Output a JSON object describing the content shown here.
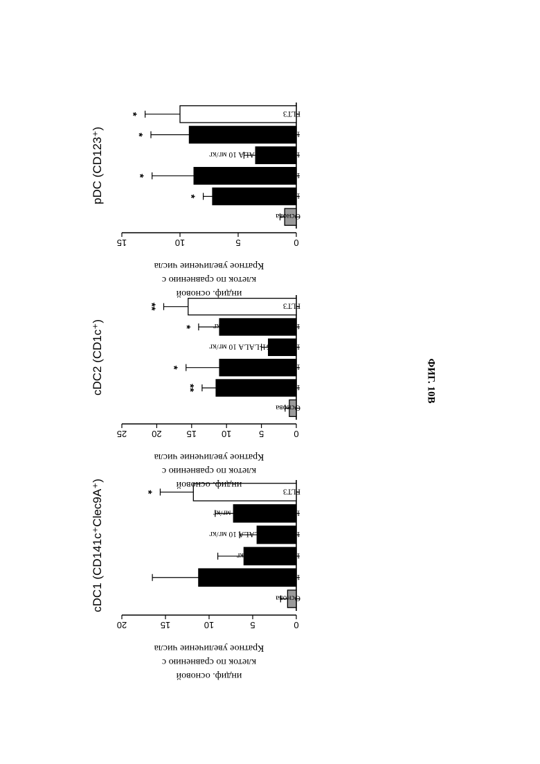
{
  "figure_caption": "ФИГ. 10В",
  "chart_data": [
    {
      "type": "bar",
      "title": "cDC1 (CD141c⁺Clec9A⁺)",
      "ylabel_lines": [
        "Кратное увеличение числа",
        "клеток по сравнению с",
        "индиф. основой"
      ],
      "ylim": [
        0,
        20
      ],
      "yticks": [
        0,
        5,
        10,
        15,
        20
      ],
      "categories": [
        "Основа",
        "17566 IgG2 10 мг/кг",
        "17566 IgG2 1 мг/кг",
        "17566 IgG1-LALA 10 мг/кг",
        "17566 IgG1-LALA 1 мг/кг",
        "FLT3"
      ],
      "values": [
        1,
        11.2,
        6,
        4.5,
        7.2,
        11.8
      ],
      "errors": [
        0.8,
        5.3,
        3,
        2,
        2.1,
        3.8
      ],
      "significance": [
        "",
        "",
        "",
        "",
        "",
        "*"
      ],
      "colors": [
        "#9a9a9a",
        "#000000",
        "#000000",
        "#000000",
        "#000000",
        "#ffffff"
      ]
    },
    {
      "type": "bar",
      "title": "cDC2 (CD1c⁺)",
      "ylabel_lines": [
        "Кратное увеличение числа",
        "клеток по сравнению с",
        "индиф. основой"
      ],
      "ylim": [
        0,
        25
      ],
      "yticks": [
        0,
        5,
        10,
        15,
        20,
        25
      ],
      "categories": [
        "Основа",
        "17566 IgG2 10 мг/кг",
        "17566 IgG2 1 мг/кг",
        "17566 IgG1-LALA 10 мг/кг",
        "17566 IgG1-LALA 1 мг/кг",
        "FLT3"
      ],
      "values": [
        1,
        11.5,
        11,
        4,
        11,
        15.5
      ],
      "errors": [
        0.6,
        2,
        4.8,
        1,
        3,
        3.5
      ],
      "significance": [
        "",
        "**",
        "*",
        "",
        "*",
        "**"
      ],
      "colors": [
        "#9a9a9a",
        "#000000",
        "#000000",
        "#000000",
        "#000000",
        "#ffffff"
      ]
    },
    {
      "type": "bar",
      "title": "pDC (CD123⁺)",
      "ylabel_lines": [
        "Кратное увеличение числа",
        "клеток по сравнению с",
        "индиф. основой"
      ],
      "ylim": [
        0,
        15
      ],
      "yticks": [
        0,
        5,
        10,
        15
      ],
      "categories": [
        "Основа",
        "17566 IgG2 10 мг/кг",
        "17566 IgG2 1 мг/кг",
        "17566 IgG1-LALA 10 мг/кг",
        "17566 IgG1-LALA 1 мг/кг",
        "FLT3"
      ],
      "values": [
        1,
        7.2,
        8.8,
        3.5,
        9.2,
        10
      ],
      "errors": [
        0.4,
        0.8,
        3.6,
        1,
        3.3,
        3
      ],
      "significance": [
        "",
        "*",
        "*",
        "",
        "*",
        "*"
      ],
      "colors": [
        "#9a9a9a",
        "#000000",
        "#000000",
        "#000000",
        "#000000",
        "#ffffff"
      ]
    }
  ]
}
